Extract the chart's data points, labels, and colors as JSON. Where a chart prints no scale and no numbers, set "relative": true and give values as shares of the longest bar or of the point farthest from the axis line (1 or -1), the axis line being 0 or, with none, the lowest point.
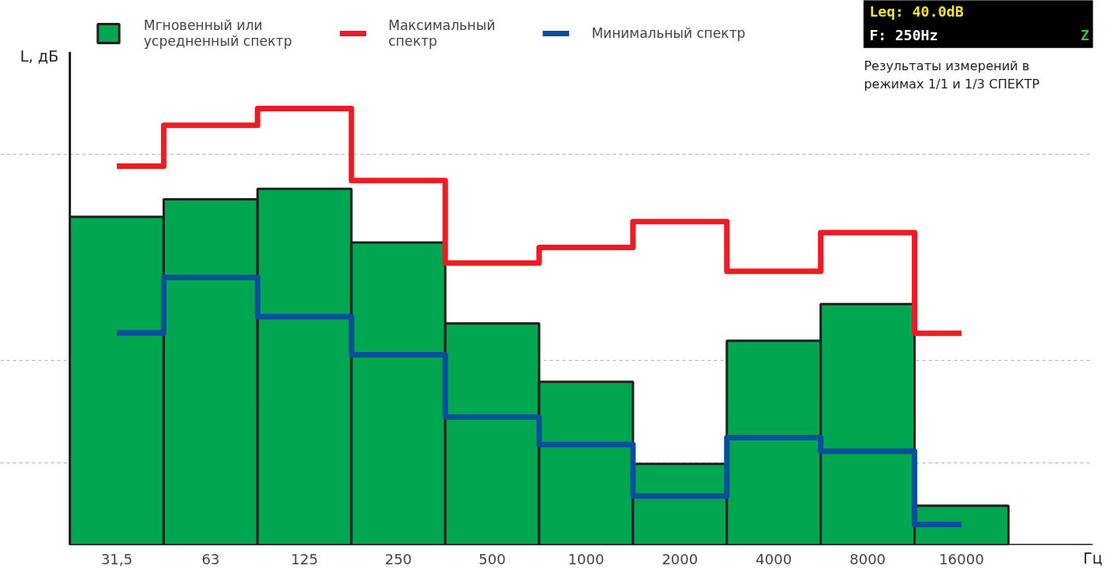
{
  "chart_data": {
    "type": "bar",
    "relative": true,
    "categories": [
      "31,5",
      "63",
      "125",
      "250",
      "500",
      "1000",
      "2000",
      "4000",
      "8000",
      "16000"
    ],
    "xlabel": "Гц",
    "ylabel": "L, дБ",
    "series": [
      {
        "name": "Мгновенный или\nусредненный спектр",
        "color": "#00a650",
        "values": [
          0.752,
          0.792,
          0.816,
          0.693,
          0.508,
          0.374,
          0.186,
          0.468,
          0.552,
          0.09
        ]
      },
      {
        "name": "Максимальный\nспектр",
        "type": "step",
        "color": "#ed1c24",
        "values": [
          0.868,
          0.962,
          1.0,
          0.835,
          0.646,
          0.682,
          0.741,
          0.627,
          0.716,
          0.485
        ]
      },
      {
        "name": "Минимальный спектр",
        "type": "step",
        "color": "#0b4f9c",
        "values": [
          0.486,
          0.613,
          0.523,
          0.436,
          0.293,
          0.23,
          0.112,
          0.246,
          0.215,
          0.047
        ]
      }
    ],
    "ref_lines": [
      {
        "axis": "y",
        "value": 0.895,
        "color": "#aaaaaa",
        "line_style": "dashed"
      },
      {
        "axis": "y",
        "value": 0.423,
        "color": "#aaaaaa",
        "line_style": "dashed"
      },
      {
        "axis": "y",
        "value": 0.188,
        "color": "#aaaaaa",
        "line_style": "dashed"
      }
    ],
    "legend": "top",
    "annotations": [
      "Leq: 40.0dB",
      "F: 250Hz",
      "Z",
      "Результаты измерений в\nрежимах 1/1 и 1/3 СПЕКТР"
    ]
  }
}
